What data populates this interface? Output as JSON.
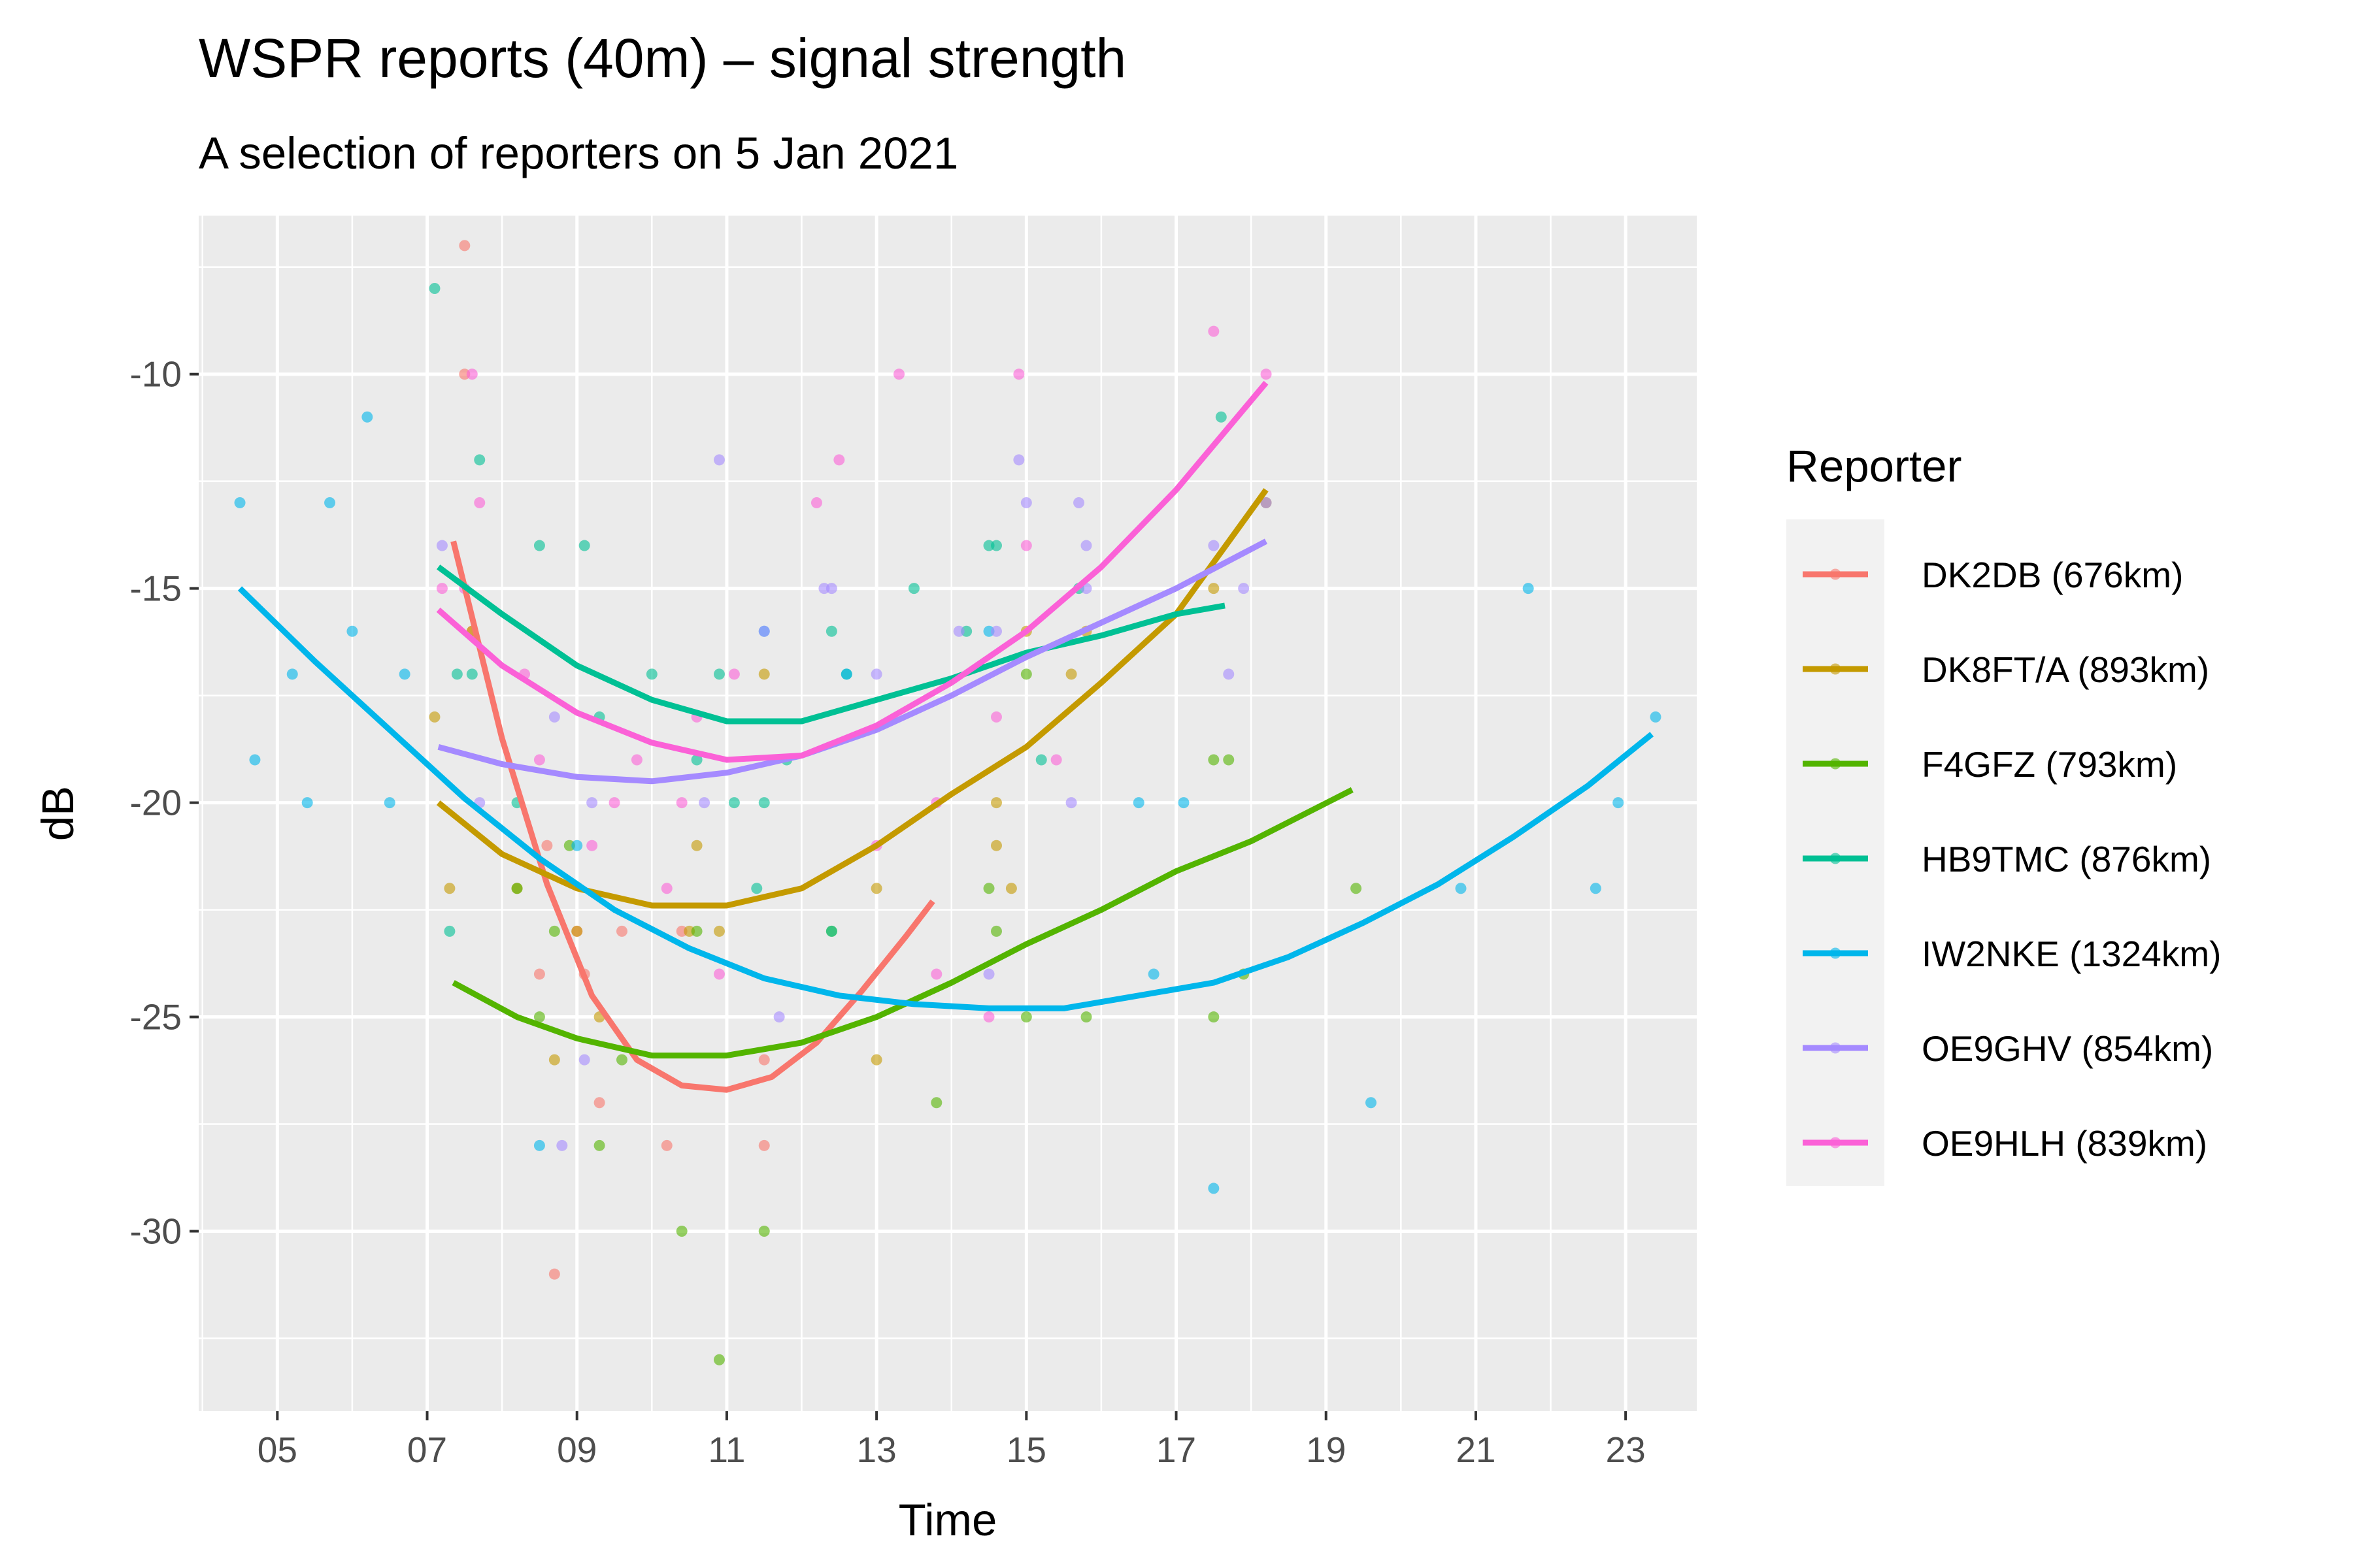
{
  "chart_data": {
    "type": "scatter",
    "title": "WSPR reports (40m) – signal strength",
    "subtitle": "A selection of reporters on 5 Jan 2021",
    "xlabel": "Time",
    "ylabel": "dB",
    "xlim": [
      3.95,
      23.95
    ],
    "ylim": [
      -34.2,
      -6.3
    ],
    "x_ticks": [
      5,
      7,
      9,
      11,
      13,
      15,
      17,
      19,
      21,
      23
    ],
    "x_tick_labels": [
      "05",
      "07",
      "09",
      "11",
      "13",
      "15",
      "17",
      "19",
      "21",
      "23"
    ],
    "y_ticks": [
      -10,
      -15,
      -20,
      -25,
      -30
    ],
    "y_tick_labels": [
      "-10",
      "-15",
      "-20",
      "-25",
      "-30"
    ],
    "grid": true,
    "legend_title": "Reporter",
    "legend_position": "right",
    "series": [
      {
        "name": "DK2DB (676km)",
        "color": "#F8766D",
        "points": [
          [
            7.5,
            -7
          ],
          [
            7.5,
            -10
          ],
          [
            7.6,
            -16
          ],
          [
            8.5,
            -24
          ],
          [
            8.6,
            -21
          ],
          [
            8.7,
            -31
          ],
          [
            9.0,
            -23
          ],
          [
            9.1,
            -24
          ],
          [
            9.3,
            -27
          ],
          [
            9.6,
            -23
          ],
          [
            10.2,
            -28
          ],
          [
            10.4,
            -23
          ],
          [
            11.5,
            -26
          ],
          [
            11.5,
            -28
          ]
        ],
        "trend": [
          [
            7.35,
            -13.9
          ],
          [
            8.0,
            -18.5
          ],
          [
            8.6,
            -21.9
          ],
          [
            9.2,
            -24.5
          ],
          [
            9.8,
            -26.0
          ],
          [
            10.4,
            -26.6
          ],
          [
            11.0,
            -26.7
          ],
          [
            11.6,
            -26.4
          ],
          [
            12.2,
            -25.6
          ],
          [
            12.8,
            -24.4
          ],
          [
            13.4,
            -23.1
          ],
          [
            13.75,
            -22.3
          ]
        ]
      },
      {
        "name": "DK8FT/A (893km)",
        "color": "#C49A00",
        "points": [
          [
            7.1,
            -18
          ],
          [
            7.3,
            -22
          ],
          [
            7.6,
            -16
          ],
          [
            8.2,
            -22
          ],
          [
            8.7,
            -26
          ],
          [
            9.0,
            -23
          ],
          [
            9.3,
            -25
          ],
          [
            10.5,
            -23
          ],
          [
            10.6,
            -21
          ],
          [
            10.9,
            -23
          ],
          [
            11.5,
            -17
          ],
          [
            13.0,
            -26
          ],
          [
            13.0,
            -22
          ],
          [
            14.6,
            -20
          ],
          [
            14.6,
            -21
          ],
          [
            14.8,
            -22
          ],
          [
            15.0,
            -16
          ],
          [
            15.6,
            -17
          ],
          [
            15.8,
            -16
          ],
          [
            17.5,
            -15
          ],
          [
            18.2,
            -13
          ]
        ],
        "trend": [
          [
            7.15,
            -20.0
          ],
          [
            8.0,
            -21.2
          ],
          [
            9.0,
            -22.0
          ],
          [
            10.0,
            -22.4
          ],
          [
            11.0,
            -22.4
          ],
          [
            12.0,
            -22.0
          ],
          [
            13.0,
            -21.0
          ],
          [
            14.0,
            -19.8
          ],
          [
            15.0,
            -18.7
          ],
          [
            16.0,
            -17.2
          ],
          [
            17.0,
            -15.6
          ],
          [
            18.2,
            -12.7
          ]
        ]
      },
      {
        "name": "F4GFZ (793km)",
        "color": "#53B400",
        "points": [
          [
            8.2,
            -22
          ],
          [
            8.5,
            -25
          ],
          [
            8.7,
            -23
          ],
          [
            8.9,
            -21
          ],
          [
            9.3,
            -28
          ],
          [
            9.6,
            -26
          ],
          [
            10.4,
            -30
          ],
          [
            10.6,
            -23
          ],
          [
            10.9,
            -33
          ],
          [
            11.5,
            -30
          ],
          [
            12.4,
            -23
          ],
          [
            13.8,
            -27
          ],
          [
            14.5,
            -22
          ],
          [
            14.6,
            -23
          ],
          [
            15.0,
            -25
          ],
          [
            15.0,
            -17
          ],
          [
            15.8,
            -25
          ],
          [
            17.5,
            -25
          ],
          [
            17.5,
            -19
          ],
          [
            17.7,
            -19
          ],
          [
            17.9,
            -24
          ],
          [
            19.4,
            -22
          ]
        ],
        "trend": [
          [
            7.35,
            -24.2
          ],
          [
            8.2,
            -25.0
          ],
          [
            9.0,
            -25.5
          ],
          [
            10.0,
            -25.9
          ],
          [
            11.0,
            -25.9
          ],
          [
            12.0,
            -25.6
          ],
          [
            13.0,
            -25.0
          ],
          [
            14.0,
            -24.2
          ],
          [
            15.0,
            -23.3
          ],
          [
            16.0,
            -22.5
          ],
          [
            17.0,
            -21.6
          ],
          [
            18.0,
            -20.9
          ],
          [
            19.35,
            -19.7
          ]
        ]
      },
      {
        "name": "HB9TMC (876km)",
        "color": "#00C094",
        "points": [
          [
            7.1,
            -8
          ],
          [
            7.3,
            -23
          ],
          [
            7.4,
            -17
          ],
          [
            7.6,
            -17
          ],
          [
            7.7,
            -12
          ],
          [
            8.2,
            -20
          ],
          [
            8.5,
            -14
          ],
          [
            9.1,
            -14
          ],
          [
            9.3,
            -18
          ],
          [
            10.0,
            -17
          ],
          [
            10.6,
            -19
          ],
          [
            10.9,
            -17
          ],
          [
            11.1,
            -20
          ],
          [
            11.4,
            -22
          ],
          [
            11.5,
            -20
          ],
          [
            11.8,
            -19
          ],
          [
            12.4,
            -23
          ],
          [
            12.4,
            -16
          ],
          [
            12.6,
            -17
          ],
          [
            13.5,
            -15
          ],
          [
            14.2,
            -16
          ],
          [
            14.5,
            -14
          ],
          [
            14.6,
            -14
          ],
          [
            15.2,
            -19
          ],
          [
            15.7,
            -15
          ],
          [
            17.6,
            -11
          ]
        ],
        "trend": [
          [
            7.15,
            -14.5
          ],
          [
            8.0,
            -15.6
          ],
          [
            9.0,
            -16.8
          ],
          [
            10.0,
            -17.6
          ],
          [
            11.0,
            -18.1
          ],
          [
            12.0,
            -18.1
          ],
          [
            13.0,
            -17.6
          ],
          [
            14.0,
            -17.1
          ],
          [
            15.0,
            -16.5
          ],
          [
            16.0,
            -16.1
          ],
          [
            17.0,
            -15.6
          ],
          [
            17.65,
            -15.4
          ]
        ]
      },
      {
        "name": "IW2NKE (1324km)",
        "color": "#00B6EB",
        "points": [
          [
            4.5,
            -13
          ],
          [
            4.7,
            -19
          ],
          [
            5.2,
            -17
          ],
          [
            5.4,
            -20
          ],
          [
            5.7,
            -13
          ],
          [
            6.0,
            -16
          ],
          [
            6.2,
            -11
          ],
          [
            6.5,
            -20
          ],
          [
            6.7,
            -17
          ],
          [
            8.5,
            -28
          ],
          [
            9.0,
            -21
          ],
          [
            11.5,
            -16
          ],
          [
            12.6,
            -17
          ],
          [
            14.5,
            -16
          ],
          [
            16.5,
            -20
          ],
          [
            16.7,
            -24
          ],
          [
            17.1,
            -20
          ],
          [
            17.5,
            -29
          ],
          [
            19.6,
            -27
          ],
          [
            20.8,
            -22
          ],
          [
            21.7,
            -15
          ],
          [
            22.6,
            -22
          ],
          [
            22.9,
            -20
          ],
          [
            23.4,
            -18
          ]
        ],
        "trend": [
          [
            4.5,
            -15.0
          ],
          [
            5.5,
            -16.7
          ],
          [
            6.5,
            -18.3
          ],
          [
            7.5,
            -19.9
          ],
          [
            8.5,
            -21.3
          ],
          [
            9.5,
            -22.5
          ],
          [
            10.5,
            -23.4
          ],
          [
            11.5,
            -24.1
          ],
          [
            12.5,
            -24.5
          ],
          [
            13.5,
            -24.7
          ],
          [
            14.5,
            -24.8
          ],
          [
            15.5,
            -24.8
          ],
          [
            16.5,
            -24.5
          ],
          [
            17.5,
            -24.2
          ],
          [
            18.5,
            -23.6
          ],
          [
            19.5,
            -22.8
          ],
          [
            20.5,
            -21.9
          ],
          [
            21.5,
            -20.8
          ],
          [
            22.5,
            -19.6
          ],
          [
            23.35,
            -18.4
          ]
        ]
      },
      {
        "name": "OE9GHV (854km)",
        "color": "#A58AFF",
        "points": [
          [
            7.2,
            -14
          ],
          [
            7.7,
            -20
          ],
          [
            8.8,
            -28
          ],
          [
            8.7,
            -18
          ],
          [
            9.1,
            -26
          ],
          [
            9.2,
            -20
          ],
          [
            10.7,
            -20
          ],
          [
            10.9,
            -12
          ],
          [
            11.5,
            -16
          ],
          [
            11.7,
            -25
          ],
          [
            12.3,
            -15
          ],
          [
            12.4,
            -15
          ],
          [
            13.0,
            -17
          ],
          [
            14.1,
            -16
          ],
          [
            14.5,
            -24
          ],
          [
            14.6,
            -16
          ],
          [
            14.9,
            -12
          ],
          [
            15.0,
            -13
          ],
          [
            15.6,
            -20
          ],
          [
            15.7,
            -13
          ],
          [
            15.8,
            -14
          ],
          [
            15.8,
            -15
          ],
          [
            17.5,
            -14
          ],
          [
            17.7,
            -17
          ],
          [
            17.9,
            -15
          ],
          [
            18.2,
            -13
          ]
        ],
        "trend": [
          [
            7.15,
            -18.7
          ],
          [
            8.0,
            -19.1
          ],
          [
            9.0,
            -19.4
          ],
          [
            10.0,
            -19.5
          ],
          [
            11.0,
            -19.3
          ],
          [
            12.0,
            -18.9
          ],
          [
            13.0,
            -18.3
          ],
          [
            14.0,
            -17.5
          ],
          [
            15.0,
            -16.6
          ],
          [
            16.0,
            -15.8
          ],
          [
            17.0,
            -15.0
          ],
          [
            18.2,
            -13.9
          ]
        ]
      },
      {
        "name": "OE9HLH (839km)",
        "color": "#FB61D7",
        "points": [
          [
            7.2,
            -15
          ],
          [
            7.5,
            -15
          ],
          [
            7.6,
            -10
          ],
          [
            7.7,
            -13
          ],
          [
            8.3,
            -17
          ],
          [
            8.5,
            -19
          ],
          [
            9.2,
            -21
          ],
          [
            9.5,
            -20
          ],
          [
            9.8,
            -19
          ],
          [
            10.2,
            -22
          ],
          [
            10.4,
            -20
          ],
          [
            10.6,
            -18
          ],
          [
            10.9,
            -24
          ],
          [
            11.1,
            -17
          ],
          [
            12.2,
            -13
          ],
          [
            12.5,
            -12
          ],
          [
            13.0,
            -21
          ],
          [
            13.3,
            -10
          ],
          [
            13.8,
            -20
          ],
          [
            13.8,
            -24
          ],
          [
            14.5,
            -25
          ],
          [
            14.6,
            -18
          ],
          [
            14.9,
            -10
          ],
          [
            15.0,
            -14
          ],
          [
            15.4,
            -19
          ],
          [
            17.5,
            -9
          ],
          [
            18.2,
            -10
          ]
        ],
        "trend": [
          [
            7.15,
            -15.5
          ],
          [
            8.0,
            -16.8
          ],
          [
            9.0,
            -17.9
          ],
          [
            10.0,
            -18.6
          ],
          [
            11.0,
            -19.0
          ],
          [
            12.0,
            -18.9
          ],
          [
            13.0,
            -18.2
          ],
          [
            14.0,
            -17.2
          ],
          [
            15.0,
            -16.0
          ],
          [
            16.0,
            -14.5
          ],
          [
            17.0,
            -12.7
          ],
          [
            18.2,
            -10.2
          ]
        ]
      }
    ]
  }
}
